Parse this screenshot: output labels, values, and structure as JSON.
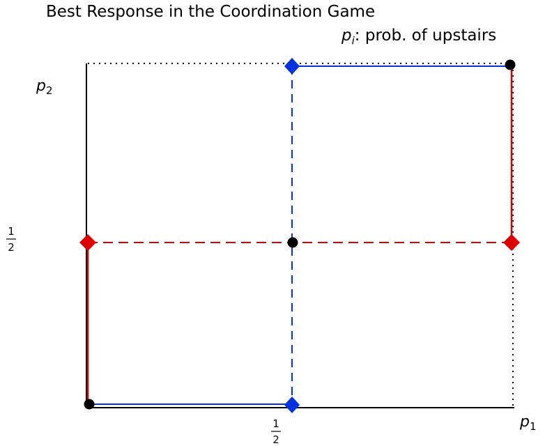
{
  "title": "Best Response in the Coordination Game",
  "subtitle": {
    "var": "p",
    "sub": "i",
    "text": ": prob. of upstairs"
  },
  "axes": {
    "x_var": "p",
    "x_sub": "1",
    "y_var": "p",
    "y_sub": "2",
    "half_numerator": "1",
    "half_denominator": "2"
  },
  "colors": {
    "player1_best_response": "#dd0000",
    "player2_best_response": "#0033dd",
    "equilibrium": "#000000",
    "axes": "#000000"
  }
}
